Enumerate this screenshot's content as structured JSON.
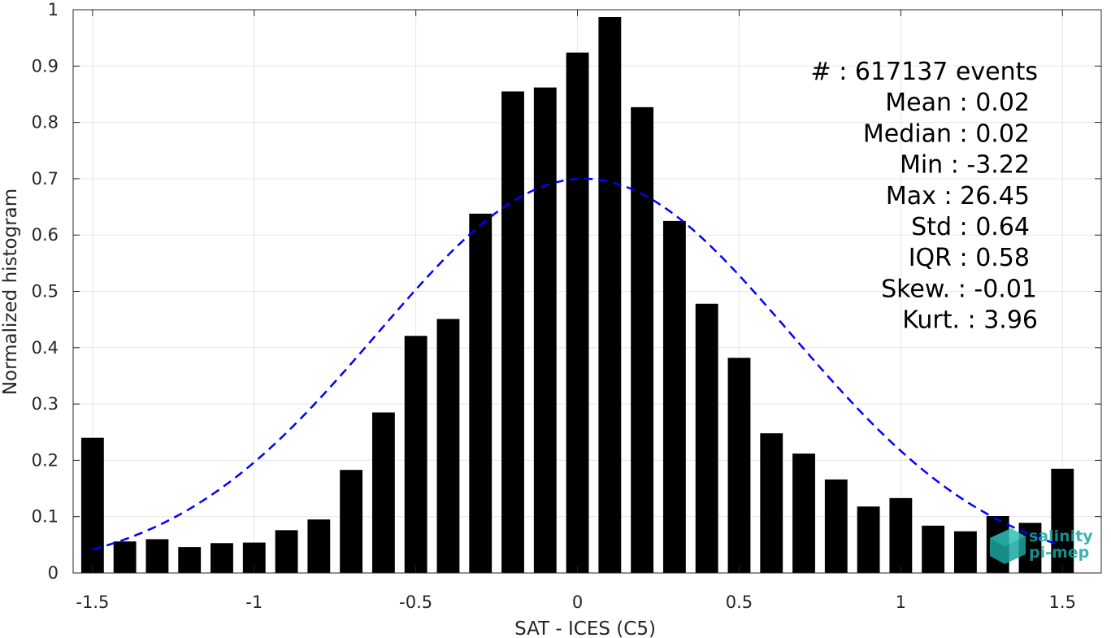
{
  "chart_data": {
    "type": "bar",
    "xlabel": "SAT - ICES (C5)",
    "ylabel": "Normalized histogram",
    "xlim": [
      -1.56,
      1.62
    ],
    "ylim": [
      0,
      1
    ],
    "grid": true,
    "x_ticks": [
      -1.5,
      -1,
      -0.5,
      0,
      0.5,
      1,
      1.5
    ],
    "x_tick_labels": [
      "-1.5",
      "-1",
      "-0.5",
      "0",
      "0.5",
      "1",
      "1.5"
    ],
    "y_ticks": [
      0,
      0.1,
      0.2,
      0.3,
      0.4,
      0.5,
      0.6,
      0.7,
      0.8,
      0.9,
      1
    ],
    "y_tick_labels": [
      "0",
      "0.1",
      "0.2",
      "0.3",
      "0.4",
      "0.5",
      "0.6",
      "0.7",
      "0.8",
      "0.9",
      "1"
    ],
    "bar_color": "#000000",
    "bins": [
      {
        "x": -1.5,
        "value": 0.24
      },
      {
        "x": -1.4,
        "value": 0.056
      },
      {
        "x": -1.3,
        "value": 0.06
      },
      {
        "x": -1.2,
        "value": 0.046
      },
      {
        "x": -1.1,
        "value": 0.053
      },
      {
        "x": -1.0,
        "value": 0.054
      },
      {
        "x": -0.9,
        "value": 0.076
      },
      {
        "x": -0.8,
        "value": 0.095
      },
      {
        "x": -0.7,
        "value": 0.183
      },
      {
        "x": -0.6,
        "value": 0.285
      },
      {
        "x": -0.5,
        "value": 0.421
      },
      {
        "x": -0.4,
        "value": 0.451
      },
      {
        "x": -0.3,
        "value": 0.638
      },
      {
        "x": -0.2,
        "value": 0.855
      },
      {
        "x": -0.1,
        "value": 0.862
      },
      {
        "x": 0.0,
        "value": 0.924
      },
      {
        "x": 0.1,
        "value": 0.987
      },
      {
        "x": 0.2,
        "value": 0.827
      },
      {
        "x": 0.3,
        "value": 0.625
      },
      {
        "x": 0.4,
        "value": 0.478
      },
      {
        "x": 0.5,
        "value": 0.382
      },
      {
        "x": 0.6,
        "value": 0.248
      },
      {
        "x": 0.7,
        "value": 0.212
      },
      {
        "x": 0.8,
        "value": 0.166
      },
      {
        "x": 0.9,
        "value": 0.118
      },
      {
        "x": 1.0,
        "value": 0.133
      },
      {
        "x": 1.1,
        "value": 0.084
      },
      {
        "x": 1.2,
        "value": 0.074
      },
      {
        "x": 1.3,
        "value": 0.101
      },
      {
        "x": 1.4,
        "value": 0.089
      },
      {
        "x": 1.5,
        "value": 0.185
      }
    ],
    "gaussian_fit": {
      "mean": 0.02,
      "std": 0.64,
      "peak": 0.7,
      "x_range": [
        -1.5,
        1.5
      ],
      "color": "#0000ff",
      "style": "dashed"
    },
    "stats": [
      "#   : 617137 events",
      "Mean : 0.02",
      "Median : 0.02",
      "Min : -3.22",
      "Max : 26.45",
      "Std : 0.64",
      "IQR : 0.58",
      "Skew. : -0.01",
      "Kurt. : 3.96"
    ]
  },
  "logo": {
    "line1": "salinity",
    "line2": "pi-mep",
    "color": "#1aa6a0"
  }
}
